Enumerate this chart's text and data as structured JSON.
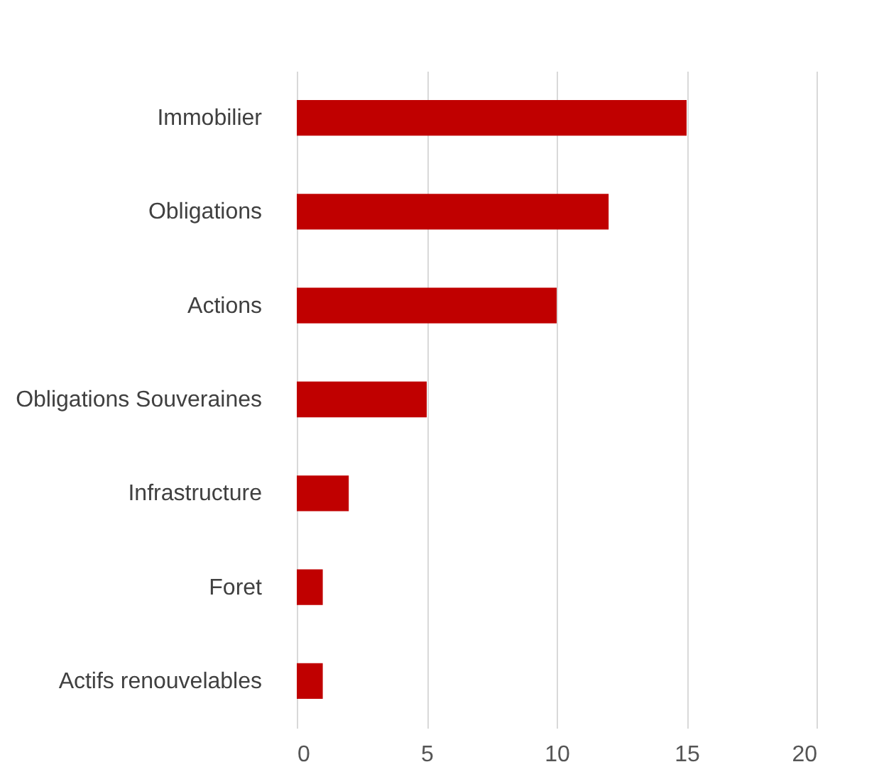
{
  "chart_data": {
    "type": "bar",
    "orientation": "horizontal",
    "categories": [
      "Immobilier",
      "Obligations",
      "Actions",
      "Obligations Souveraines",
      "Infrastructure",
      "Foret",
      "Actifs renouvelables"
    ],
    "values": [
      15,
      12,
      10,
      5,
      2,
      1,
      1
    ],
    "color": "#c00000",
    "xlim": [
      0,
      20
    ],
    "xticks": [
      0,
      5,
      10,
      15,
      20
    ],
    "grid": "x"
  }
}
